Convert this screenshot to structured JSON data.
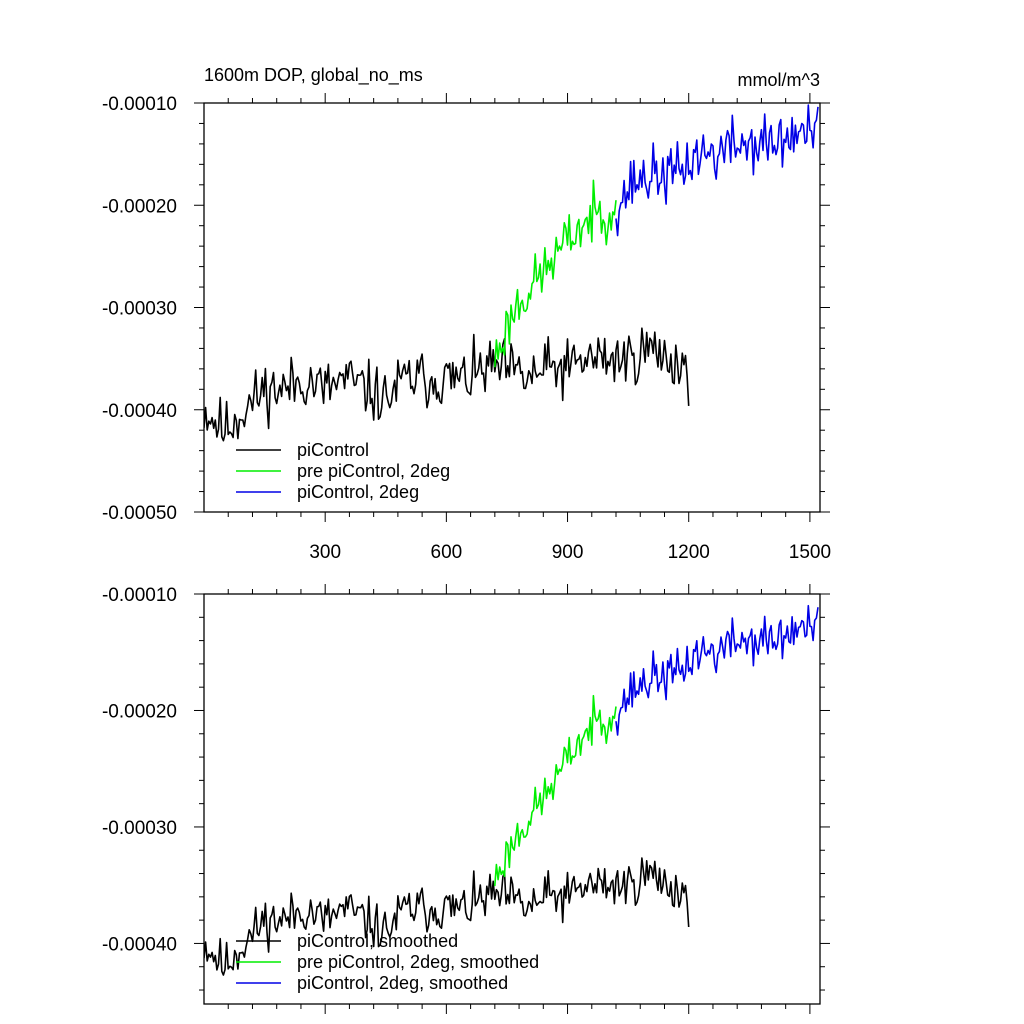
{
  "figure": {
    "title_left": "1600m DOP, global_no_ms",
    "title_right": "mmol/m^3"
  },
  "colors": {
    "piControl": "#000000",
    "pre_piControl_2deg": "#00ee00",
    "piControl_2deg": "#0000e6"
  },
  "chart_data": [
    {
      "type": "line",
      "title": "1600m DOP, global_no_ms",
      "units": "mmol/m^3",
      "xlim": [
        0,
        1525
      ],
      "ylim": [
        -0.0005,
        -0.0001
      ],
      "xticks": [
        300,
        600,
        900,
        1200,
        1500
      ],
      "xtick_labels": [
        "300",
        "600",
        "900",
        "1200",
        "1500"
      ],
      "yticks": [
        -0.0001,
        -0.0002,
        -0.0003,
        -0.0004,
        -0.0005
      ],
      "ytick_labels": [
        "-0.00010",
        "-0.00020",
        "-0.00030",
        "-0.00040",
        "-0.00050"
      ],
      "grid": false,
      "legend_position": "bottom-left",
      "series": [
        {
          "name": "piControl",
          "color_key": "piControl",
          "x_start": 0,
          "x_step": 50,
          "values": [
            -0.0004,
            -0.00042,
            -0.0004,
            -0.00038,
            -0.00038,
            -0.00037,
            -0.00038,
            -0.00037,
            -0.00038,
            -0.00039,
            -0.00037,
            -0.00037,
            -0.00037,
            -0.00037,
            -0.00036,
            -0.00036,
            -0.00037,
            -0.00036,
            -0.00036,
            -0.00035,
            -0.00035,
            -0.00035,
            -0.00034,
            -0.00035,
            -0.00036
          ],
          "noise_amplitude": 1.4e-05,
          "noise_seed": 11
        },
        {
          "name": "pre piControl, 2deg",
          "color_key": "pre_piControl_2deg",
          "x_start": 720,
          "x_step": 50,
          "values": [
            -0.00035,
            -0.0003,
            -0.000275,
            -0.00025,
            -0.000225,
            -0.00021,
            -0.0002
          ],
          "noise_amplitude": 1.3e-05,
          "noise_seed": 23
        },
        {
          "name": "piControl, 2deg",
          "color_key": "piControl_2deg",
          "x_start": 1020,
          "x_step": 50,
          "values": [
            -0.0002,
            -0.000175,
            -0.00017,
            -0.00017,
            -0.00015,
            -0.00015,
            -0.00014,
            -0.00014,
            -0.00014,
            -0.00013,
            -0.00013
          ],
          "noise_amplitude": 1.4e-05,
          "noise_seed": 37
        }
      ],
      "legend": [
        "piControl",
        "pre piControl, 2deg",
        "piControl, 2deg"
      ]
    },
    {
      "type": "line",
      "title": "",
      "xlim": [
        0,
        1525
      ],
      "ylim": [
        -0.000452,
        -0.0001
      ],
      "yticks": [
        -0.0001,
        -0.0002,
        -0.0003,
        -0.0004
      ],
      "ytick_labels": [
        "-0.00010",
        "-0.00020",
        "-0.00030",
        "-0.00040"
      ],
      "grid": false,
      "legend_position": "bottom-left",
      "series": [
        {
          "name": "piControl, smoothed",
          "color_key": "piControl",
          "x_start": 0,
          "x_step": 50,
          "values": [
            -0.0004,
            -0.00042,
            -0.0004,
            -0.00038,
            -0.00038,
            -0.00037,
            -0.00038,
            -0.00037,
            -0.00038,
            -0.00039,
            -0.00037,
            -0.00037,
            -0.00037,
            -0.00037,
            -0.00036,
            -0.00036,
            -0.00037,
            -0.00036,
            -0.00036,
            -0.00035,
            -0.00035,
            -0.00035,
            -0.00034,
            -0.00035,
            -0.00036
          ],
          "noise_amplitude": 1e-05,
          "noise_seed": 11
        },
        {
          "name": "pre piControl, 2deg, smoothed",
          "color_key": "pre_piControl_2deg",
          "x_start": 720,
          "x_step": 50,
          "values": [
            -0.000345,
            -0.00031,
            -0.000285,
            -0.00026,
            -0.00023,
            -0.00021,
            -0.0002
          ],
          "noise_amplitude": 9e-06,
          "noise_seed": 23
        },
        {
          "name": "piControl, 2deg, smoothed",
          "color_key": "piControl_2deg",
          "x_start": 1020,
          "x_step": 50,
          "values": [
            -0.0002,
            -0.00018,
            -0.00017,
            -0.00017,
            -0.00015,
            -0.00015,
            -0.00014,
            -0.00014,
            -0.00014,
            -0.00013,
            -0.00013
          ],
          "noise_amplitude": 1e-05,
          "noise_seed": 37
        }
      ],
      "legend": [
        "piControl, smoothed",
        "pre piControl, 2deg, smoothed",
        "piControl, 2deg, smoothed"
      ]
    }
  ]
}
